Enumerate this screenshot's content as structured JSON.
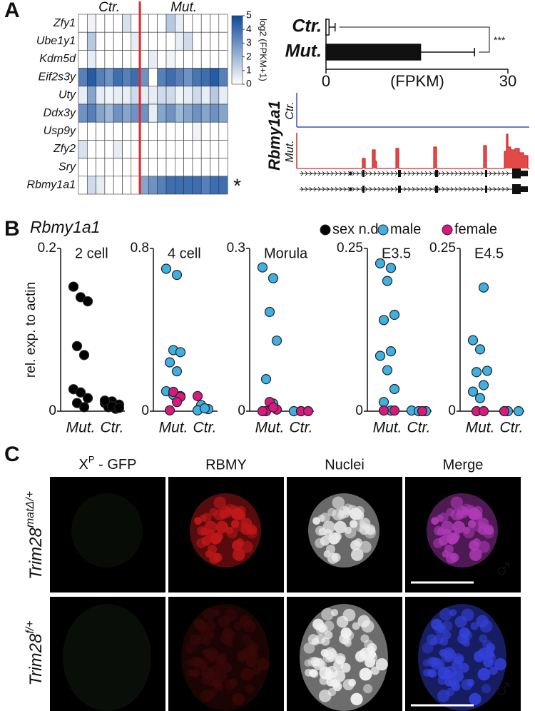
{
  "panels": [
    "A",
    "B",
    "C"
  ],
  "chart_data": [
    {
      "type": "heatmap",
      "rows": [
        "Zfy1",
        "Ube1y1",
        "Kdm5d",
        "Eif2s3y",
        "Uty",
        "Ddx3y",
        "Usp9y",
        "Zfy2",
        "Sry",
        "Rbmy1a1"
      ],
      "row_colors": [
        "#111111",
        "#111111",
        "#111111",
        "#111111",
        "#111111",
        "#111111",
        "#111111",
        "#111111",
        "#111111",
        "#e8262a"
      ],
      "series": [
        {
          "name": "Ctr.",
          "values": [
            [
              0,
              0.3,
              0,
              0,
              0,
              0.8,
              0
            ],
            [
              0,
              1.5,
              0,
              0,
              0,
              0,
              0.5
            ],
            [
              0,
              0.5,
              0,
              0,
              0,
              0,
              0
            ],
            [
              3.5,
              4.5,
              3.5,
              3,
              4,
              3.5,
              4
            ],
            [
              0.5,
              2.5,
              0.5,
              0.3,
              0.5,
              0.5,
              1
            ],
            [
              3,
              3.5,
              2.5,
              2,
              3,
              2.5,
              3
            ],
            [
              0,
              0,
              0,
              0,
              0,
              0,
              0
            ],
            [
              0.8,
              0,
              0,
              0,
              0.5,
              0,
              0
            ],
            [
              0,
              0,
              0,
              0,
              0,
              0,
              0
            ],
            [
              0,
              1,
              0.5,
              0,
              0,
              0,
              0
            ]
          ]
        },
        {
          "name": "Mut.",
          "values": [
            [
              0,
              0,
              0,
              1.5,
              0.5,
              0,
              0,
              0,
              0,
              0
            ],
            [
              0,
              0,
              0,
              0,
              0.5,
              1,
              0,
              0,
              0,
              0
            ],
            [
              0,
              0.5,
              0,
              0.3,
              0,
              0,
              0,
              0,
              0,
              0
            ],
            [
              3,
              0,
              3.5,
              4,
              3.5,
              3,
              3.8,
              4,
              4.5,
              3.5
            ],
            [
              0.5,
              0.5,
              1,
              1,
              0.3,
              0.5,
              1,
              0.5,
              1.5,
              0.5
            ],
            [
              3,
              0.5,
              2.5,
              3,
              2,
              2.5,
              3,
              2.5,
              3,
              2.5
            ],
            [
              0,
              0,
              0,
              0,
              0,
              0,
              0.3,
              0,
              0,
              0
            ],
            [
              0,
              0,
              0,
              0,
              0,
              0,
              0,
              0,
              0,
              0
            ],
            [
              0,
              0,
              0,
              0,
              0,
              0,
              0,
              0,
              0,
              0
            ],
            [
              2.5,
              3,
              3.5,
              4,
              4,
              4,
              4,
              3.5,
              4,
              4
            ]
          ]
        }
      ],
      "zlim": [
        0,
        5
      ],
      "zticks": [
        0,
        1,
        2,
        3,
        4,
        5
      ],
      "colorbar_label": "log2 (FPKM+1)",
      "colors": [
        "#ffffff",
        "#0d4a9b"
      ],
      "divider_color": "#e8262a",
      "annotation": {
        "text": "*",
        "color": "#e8262a"
      }
    },
    {
      "type": "barh",
      "categories": [
        "Ctr.",
        "Mut."
      ],
      "values": [
        0.5,
        15.6
      ],
      "errors": [
        1,
        8.9
      ],
      "colors": [
        "#ffffff",
        "#111111"
      ],
      "xlim": [
        0,
        30
      ],
      "xticks": [
        0,
        30
      ],
      "xlabel": "(FPKM)",
      "annotation": "***"
    },
    {
      "type": "strip",
      "title": "Rbmy1a1",
      "ylabel": "rel. exp. to actin",
      "series": [
        {
          "name": "sex n.d.",
          "color": "#000000",
          "values": [
            [
              [
                0.153,
                0.14,
                0.135,
                0.08,
                0.069,
                0.027,
                0.023,
                0.016,
                0.01,
                0.005
              ],
              [
                0.01,
                0.012,
                0.008,
                0.005,
                0.003,
                0.013,
                0.006,
                0.004
              ]
            ],
            [
              [],
              []
            ],
            [
              [],
              []
            ],
            [
              [],
              []
            ],
            [
              [],
              []
            ]
          ]
        },
        {
          "name": "male",
          "color": "#3fb0e0",
          "values": [
            [
              [],
              []
            ],
            [
              [
                0.67,
                0.7,
                0.3,
                0.29,
                0.24,
                0.196,
                0.098,
                0.08,
                0.074
              ],
              [
                0.03,
                0.01,
                0.004,
                0.014
              ]
            ],
            [
              [
                0.245,
                0.265,
                0.183,
                0.13,
                0.059,
                0.014
              ],
              [
                0,
                0
              ]
            ],
            [
              [
                0.22,
                0.227,
                0.2,
                0.148,
                0.14,
                0.092,
                0.085,
                0.063,
                0.034,
                0.014,
                0.001
              ],
              [
                0.001,
                0,
                0
              ]
            ],
            [
              [
                0.19,
                0.109,
                0.095,
                0.062,
                0.06,
                0.04,
                0.03,
                0.02
              ],
              [
                0,
                0
              ]
            ]
          ]
        },
        {
          "name": "female",
          "color": "#d8197f",
          "values": [
            [
              [],
              []
            ],
            [
              [
                0.095,
                0.07,
                0.004,
                0.045
              ],
              [
                0.074
              ]
            ],
            [
              [
                0.017,
                0.003,
                0,
                0.007,
                0
              ],
              [
                0,
                0
              ]
            ],
            [
              [
                0.001,
                0.001
              ],
              [
                0
              ]
            ],
            [
              [
                0,
                0
              ],
              [
                0
              ]
            ]
          ]
        }
      ],
      "panels": [
        {
          "title": "2 cell",
          "categories": [
            "Mut.",
            "Ctr."
          ],
          "ylim": [
            0,
            0.2
          ],
          "yticks": [
            0,
            0.2
          ]
        },
        {
          "title": "4 cell",
          "categories": [
            "Mut.",
            "Ctr."
          ],
          "ylim": [
            0,
            0.8
          ],
          "yticks": [
            0,
            0.8
          ]
        },
        {
          "title": "Morula",
          "categories": [
            "Mut.",
            "Ctr."
          ],
          "ylim": [
            0,
            0.3
          ],
          "yticks": [
            0,
            0.3
          ]
        },
        {
          "title": "E3.5",
          "categories": [
            "Mut.",
            "Ctr."
          ],
          "ylim": [
            0,
            0.25
          ],
          "yticks": [
            0,
            0.25
          ]
        },
        {
          "title": "E4.5",
          "categories": [
            "Mut.",
            "Ctr."
          ],
          "ylim": [
            0,
            0.25
          ],
          "yticks": [
            0,
            0.25
          ]
        }
      ]
    }
  ],
  "track": {
    "gene": "Rbmy1a1",
    "tracks": [
      "Ctr.",
      "Mut."
    ]
  },
  "panel_c": {
    "headers": {
      "gfp": "X",
      "gfp_sup": "P",
      "gfp_rest": " - GFP",
      "rbmy": "RBMY",
      "nuclei": "Nuclei",
      "merge": "Merge"
    },
    "rows": [
      {
        "gene": "Trim28",
        "sup": "matΔ/+"
      },
      {
        "gene": "Trim28",
        "sup": "f/+"
      }
    ],
    "symbol": "♂"
  }
}
